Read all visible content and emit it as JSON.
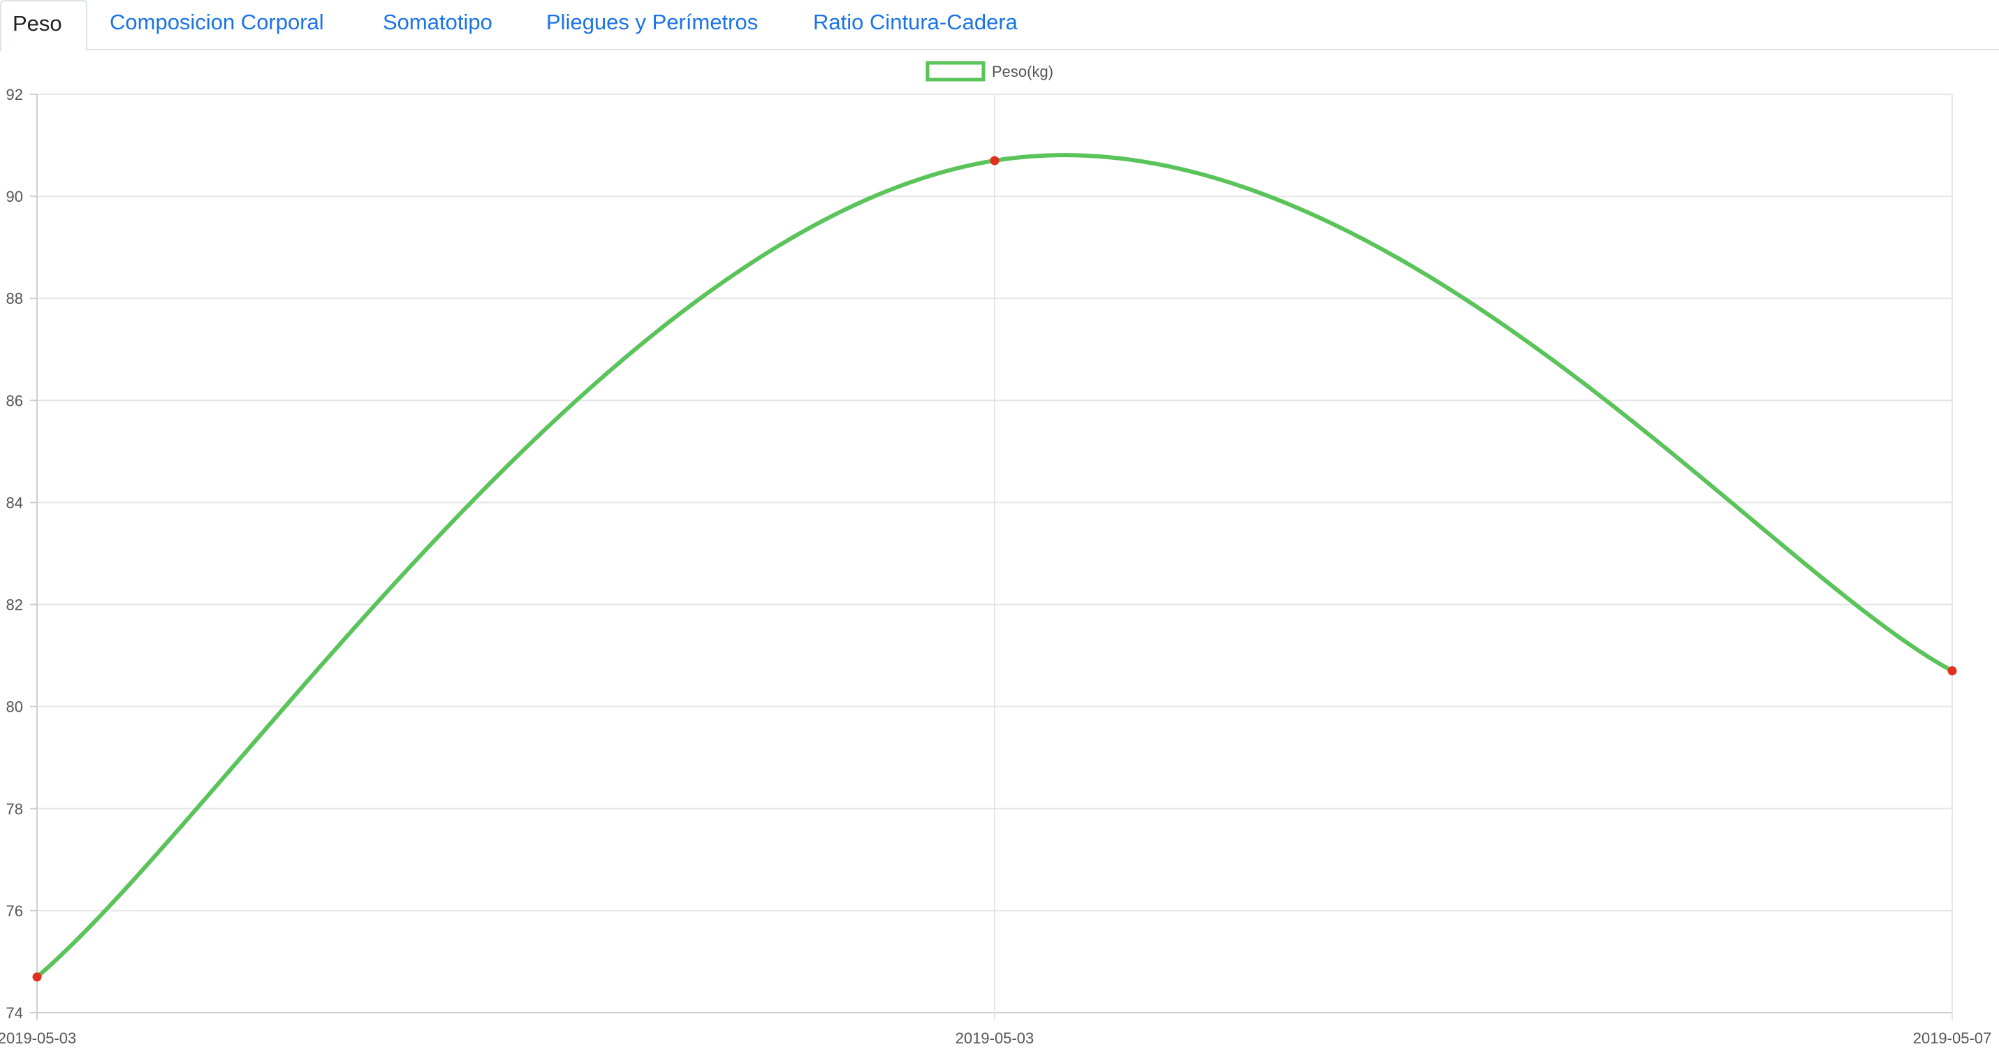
{
  "tabs": [
    {
      "label": "Peso",
      "active": true
    },
    {
      "label": "Composicion Corporal",
      "active": false
    },
    {
      "label": "Somatotipo",
      "active": false
    },
    {
      "label": "Pliegues y Perímetros",
      "active": false
    },
    {
      "label": "Ratio Cintura-Cadera",
      "active": false
    }
  ],
  "colors": {
    "tab_link": "#1a73e8",
    "line": "#5ac35a",
    "point": "#e0301e",
    "grid": "#e6e6e6"
  },
  "chart_data": {
    "type": "line",
    "categories": [
      "2019-05-03",
      "2019-05-03",
      "2019-05-07"
    ],
    "series": [
      {
        "name": "Peso(kg)",
        "values": [
          74.7,
          90.7,
          80.7
        ]
      }
    ],
    "ylim": [
      74,
      92
    ],
    "yticks": [
      74,
      76,
      78,
      80,
      82,
      84,
      86,
      88,
      90,
      92
    ],
    "grid": true,
    "legend": "top-center",
    "curve": "smooth"
  }
}
